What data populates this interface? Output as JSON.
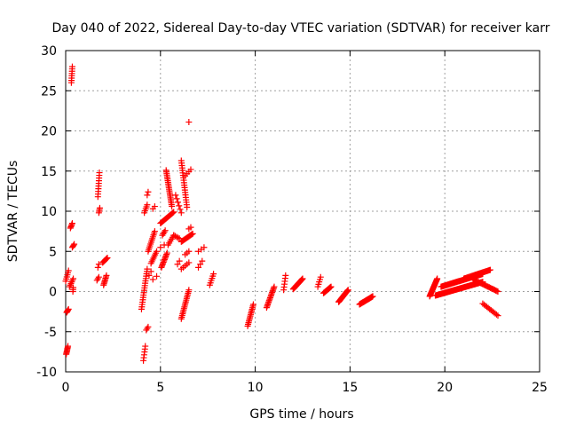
{
  "chart_data": {
    "type": "scatter",
    "title": "Day 040 of 2022, Sidereal Day-to-day VTEC variation (SDTVAR) for receiver karr",
    "xlabel": "GPS time / hours",
    "ylabel": "SDTVAR / TECUs",
    "xlim": [
      0,
      25
    ],
    "ylim": [
      -10,
      30
    ],
    "xticks": [
      "0",
      "5",
      "10",
      "15",
      "20",
      "25"
    ],
    "yticks": [
      "-10",
      "-5",
      "0",
      "5",
      "10",
      "15",
      "20",
      "25",
      "30"
    ],
    "grid": true,
    "marker": "+",
    "marker_color": "#ff0000",
    "series": [
      {
        "name": "SDTVAR",
        "segments": [
          {
            "x0": 0.03,
            "x1": 0.12,
            "y0": -7.8,
            "y1": -6.8,
            "n": 8
          },
          {
            "x0": 0.05,
            "x1": 0.15,
            "y0": -2.6,
            "y1": -2.2,
            "n": 5
          },
          {
            "x0": 0.0,
            "x1": 0.15,
            "y0": 1.3,
            "y1": 2.6,
            "n": 6
          },
          {
            "x0": 0.2,
            "x1": 0.4,
            "y0": 0.6,
            "y1": 1.6,
            "n": 6
          },
          {
            "x0": 0.3,
            "x1": 0.35,
            "y0": 26.0,
            "y1": 28.0,
            "n": 8
          },
          {
            "x0": 0.25,
            "x1": 0.35,
            "y0": 7.9,
            "y1": 8.5,
            "n": 5
          },
          {
            "x0": 0.35,
            "x1": 0.45,
            "y0": 5.5,
            "y1": 5.9,
            "n": 4
          },
          {
            "x0": 0.38,
            "x1": 0.4,
            "y0": 0.0,
            "y1": 0.5,
            "n": 3
          },
          {
            "x0": 1.7,
            "x1": 1.78,
            "y0": 11.8,
            "y1": 14.8,
            "n": 10
          },
          {
            "x0": 1.75,
            "x1": 1.8,
            "y0": 9.8,
            "y1": 10.4,
            "n": 4
          },
          {
            "x0": 1.7,
            "x1": 1.75,
            "y0": 3.0,
            "y1": 3.4,
            "n": 2
          },
          {
            "x0": 1.65,
            "x1": 1.75,
            "y0": 1.4,
            "y1": 1.8,
            "n": 3
          },
          {
            "x0": 1.95,
            "x1": 2.2,
            "y0": 3.6,
            "y1": 4.2,
            "n": 7
          },
          {
            "x0": 2.0,
            "x1": 2.15,
            "y0": 0.8,
            "y1": 2.0,
            "n": 8
          },
          {
            "x0": 4.0,
            "x1": 4.3,
            "y0": -2.2,
            "y1": 2.8,
            "n": 18
          },
          {
            "x0": 4.1,
            "x1": 4.2,
            "y0": -8.6,
            "y1": -6.8,
            "n": 6
          },
          {
            "x0": 4.25,
            "x1": 4.35,
            "y0": -4.8,
            "y1": -4.4,
            "n": 3
          },
          {
            "x0": 4.15,
            "x1": 4.3,
            "y0": 9.8,
            "y1": 10.8,
            "n": 5
          },
          {
            "x0": 4.3,
            "x1": 4.35,
            "y0": 12.0,
            "y1": 12.4,
            "n": 2
          },
          {
            "x0": 4.35,
            "x1": 4.7,
            "y0": 5.0,
            "y1": 7.5,
            "n": 12
          },
          {
            "x0": 4.5,
            "x1": 4.8,
            "y0": 3.5,
            "y1": 5.0,
            "n": 8
          },
          {
            "x0": 4.6,
            "x1": 4.7,
            "y0": 10.3,
            "y1": 10.6,
            "n": 2
          },
          {
            "x0": 4.4,
            "x1": 4.5,
            "y0": 2.0,
            "y1": 2.5,
            "n": 2
          },
          {
            "x0": 4.6,
            "x1": 4.8,
            "y0": 1.5,
            "y1": 1.9,
            "n": 2
          },
          {
            "x0": 5.05,
            "x1": 5.35,
            "y0": 3.0,
            "y1": 4.8,
            "n": 12
          },
          {
            "x0": 5.0,
            "x1": 5.2,
            "y0": 5.5,
            "y1": 5.8,
            "n": 2
          },
          {
            "x0": 5.1,
            "x1": 5.25,
            "y0": 7.0,
            "y1": 7.6,
            "n": 4
          },
          {
            "x0": 5.0,
            "x1": 5.7,
            "y0": 8.5,
            "y1": 9.9,
            "n": 18
          },
          {
            "x0": 5.3,
            "x1": 5.6,
            "y0": 15.1,
            "y1": 10.6,
            "n": 22
          },
          {
            "x0": 5.4,
            "x1": 5.7,
            "y0": 5.8,
            "y1": 7.0,
            "n": 6
          },
          {
            "x0": 5.7,
            "x1": 6.0,
            "y0": 7.0,
            "y1": 6.6,
            "n": 5
          },
          {
            "x0": 5.8,
            "x1": 6.1,
            "y0": 12.0,
            "y1": 9.8,
            "n": 6
          },
          {
            "x0": 5.9,
            "x1": 6.0,
            "y0": 3.4,
            "y1": 3.8,
            "n": 2
          },
          {
            "x0": 6.1,
            "x1": 6.4,
            "y0": 16.3,
            "y1": 10.5,
            "n": 20
          },
          {
            "x0": 6.1,
            "x1": 6.7,
            "y0": 6.2,
            "y1": 7.2,
            "n": 14
          },
          {
            "x0": 6.3,
            "x1": 6.6,
            "y0": 14.4,
            "y1": 15.2,
            "n": 4
          },
          {
            "x0": 6.5,
            "x1": 6.55,
            "y0": 21.1,
            "y1": 21.2,
            "n": 1
          },
          {
            "x0": 6.1,
            "x1": 6.5,
            "y0": -3.4,
            "y1": 0.2,
            "n": 18
          },
          {
            "x0": 6.1,
            "x1": 6.5,
            "y0": 2.8,
            "y1": 3.6,
            "n": 5
          },
          {
            "x0": 6.3,
            "x1": 6.5,
            "y0": 4.6,
            "y1": 5.0,
            "n": 3
          },
          {
            "x0": 6.5,
            "x1": 6.6,
            "y0": 7.8,
            "y1": 8.0,
            "n": 2
          },
          {
            "x0": 7.0,
            "x1": 7.3,
            "y0": 5.0,
            "y1": 5.5,
            "n": 3
          },
          {
            "x0": 7.0,
            "x1": 7.2,
            "y0": 3.0,
            "y1": 3.8,
            "n": 3
          },
          {
            "x0": 7.6,
            "x1": 7.8,
            "y0": 0.8,
            "y1": 2.2,
            "n": 6
          },
          {
            "x0": 9.6,
            "x1": 9.9,
            "y0": -4.3,
            "y1": -1.6,
            "n": 14
          },
          {
            "x0": 10.6,
            "x1": 11.0,
            "y0": -2.0,
            "y1": 0.6,
            "n": 16
          },
          {
            "x0": 11.5,
            "x1": 11.6,
            "y0": 0.2,
            "y1": 2.0,
            "n": 6
          },
          {
            "x0": 12.0,
            "x1": 12.5,
            "y0": 0.3,
            "y1": 1.6,
            "n": 18
          },
          {
            "x0": 13.3,
            "x1": 13.45,
            "y0": 0.6,
            "y1": 1.8,
            "n": 5
          },
          {
            "x0": 13.6,
            "x1": 14.0,
            "y0": -0.2,
            "y1": 0.6,
            "n": 14
          },
          {
            "x0": 14.4,
            "x1": 14.9,
            "y0": -1.3,
            "y1": 0.2,
            "n": 22
          },
          {
            "x0": 15.5,
            "x1": 16.2,
            "y0": -1.6,
            "y1": -0.6,
            "n": 26
          },
          {
            "x0": 19.2,
            "x1": 19.6,
            "y0": -0.6,
            "y1": 1.6,
            "n": 22
          },
          {
            "x0": 19.5,
            "x1": 22.0,
            "y0": -0.5,
            "y1": 1.2,
            "n": 70
          },
          {
            "x0": 19.8,
            "x1": 22.0,
            "y0": 0.6,
            "y1": 2.2,
            "n": 60
          },
          {
            "x0": 21.0,
            "x1": 22.4,
            "y0": 1.6,
            "y1": 2.7,
            "n": 30
          },
          {
            "x0": 21.5,
            "x1": 22.8,
            "y0": 1.5,
            "y1": 0.0,
            "n": 24
          },
          {
            "x0": 22.0,
            "x1": 22.8,
            "y0": -1.5,
            "y1": -3.0,
            "n": 12
          }
        ]
      }
    ]
  }
}
